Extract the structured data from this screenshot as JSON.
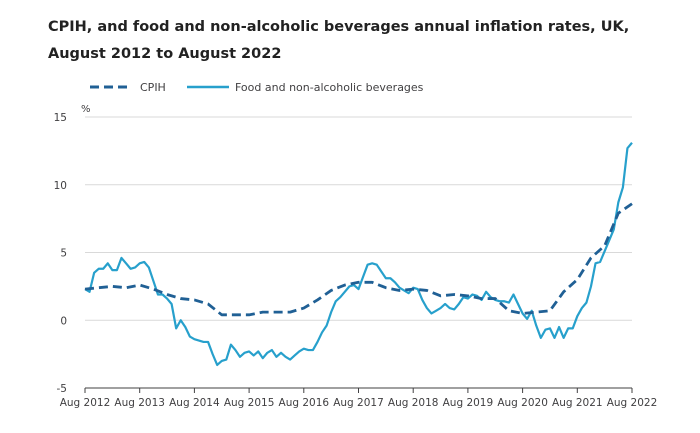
{
  "chart_data": {
    "type": "line",
    "title_line1": "CPIH, and food and non-alcoholic beverages annual inflation rates, UK,",
    "title_line2": "August 2012 to August 2022",
    "yunit": "%",
    "ylim": [
      -5,
      15
    ],
    "yticks": [
      -5,
      0,
      5,
      10,
      15
    ],
    "xlim": [
      "2012-08",
      "2022-08"
    ],
    "xticks": [
      "Aug 2012",
      "Aug 2013",
      "Aug 2014",
      "Aug 2015",
      "Aug 2016",
      "Aug 2017",
      "Aug 2018",
      "Aug 2019",
      "Aug 2020",
      "Aug 2021",
      "Aug 2022"
    ],
    "grid": "horizontal",
    "legend_position": "top-left",
    "series": [
      {
        "name": "CPIH",
        "style": "dashed",
        "color": "#206095",
        "values": [
          [
            "2012-08",
            2.3
          ],
          [
            "2012-11",
            2.4
          ],
          [
            "2013-02",
            2.5
          ],
          [
            "2013-05",
            2.4
          ],
          [
            "2013-08",
            2.6
          ],
          [
            "2013-11",
            2.3
          ],
          [
            "2014-02",
            1.9
          ],
          [
            "2014-05",
            1.6
          ],
          [
            "2014-08",
            1.5
          ],
          [
            "2014-11",
            1.2
          ],
          [
            "2015-02",
            0.4
          ],
          [
            "2015-05",
            0.4
          ],
          [
            "2015-08",
            0.4
          ],
          [
            "2015-11",
            0.6
          ],
          [
            "2016-02",
            0.6
          ],
          [
            "2016-05",
            0.6
          ],
          [
            "2016-08",
            0.9
          ],
          [
            "2016-11",
            1.5
          ],
          [
            "2017-02",
            2.2
          ],
          [
            "2017-05",
            2.6
          ],
          [
            "2017-08",
            2.8
          ],
          [
            "2017-11",
            2.8
          ],
          [
            "2018-02",
            2.4
          ],
          [
            "2018-05",
            2.2
          ],
          [
            "2018-08",
            2.3
          ],
          [
            "2018-11",
            2.2
          ],
          [
            "2019-02",
            1.8
          ],
          [
            "2019-05",
            1.9
          ],
          [
            "2019-08",
            1.8
          ],
          [
            "2019-11",
            1.6
          ],
          [
            "2020-02",
            1.6
          ],
          [
            "2020-05",
            0.7
          ],
          [
            "2020-08",
            0.5
          ],
          [
            "2020-11",
            0.6
          ],
          [
            "2021-02",
            0.7
          ],
          [
            "2021-05",
            2.1
          ],
          [
            "2021-08",
            3.0
          ],
          [
            "2021-11",
            4.6
          ],
          [
            "2022-02",
            5.5
          ],
          [
            "2022-05",
            7.9
          ],
          [
            "2022-08",
            8.6
          ]
        ]
      },
      {
        "name": "Food and non-alcoholic beverages",
        "style": "solid",
        "color": "#27a0cc",
        "values": [
          [
            "2012-08",
            2.3
          ],
          [
            "2012-09",
            2.1
          ],
          [
            "2012-10",
            3.5
          ],
          [
            "2012-11",
            3.8
          ],
          [
            "2012-12",
            3.8
          ],
          [
            "2013-01",
            4.2
          ],
          [
            "2013-02",
            3.7
          ],
          [
            "2013-03",
            3.7
          ],
          [
            "2013-04",
            4.6
          ],
          [
            "2013-05",
            4.2
          ],
          [
            "2013-06",
            3.8
          ],
          [
            "2013-07",
            3.9
          ],
          [
            "2013-08",
            4.2
          ],
          [
            "2013-09",
            4.3
          ],
          [
            "2013-10",
            3.9
          ],
          [
            "2013-11",
            2.9
          ],
          [
            "2013-12",
            1.9
          ],
          [
            "2014-01",
            1.9
          ],
          [
            "2014-02",
            1.6
          ],
          [
            "2014-03",
            1.2
          ],
          [
            "2014-04",
            -0.6
          ],
          [
            "2014-05",
            0.0
          ],
          [
            "2014-06",
            -0.5
          ],
          [
            "2014-07",
            -1.2
          ],
          [
            "2014-08",
            -1.4
          ],
          [
            "2014-09",
            -1.5
          ],
          [
            "2014-10",
            -1.6
          ],
          [
            "2014-11",
            -1.6
          ],
          [
            "2014-12",
            -2.5
          ],
          [
            "2015-01",
            -3.3
          ],
          [
            "2015-02",
            -3.0
          ],
          [
            "2015-03",
            -2.9
          ],
          [
            "2015-04",
            -1.8
          ],
          [
            "2015-05",
            -2.2
          ],
          [
            "2015-06",
            -2.7
          ],
          [
            "2015-07",
            -2.4
          ],
          [
            "2015-08",
            -2.3
          ],
          [
            "2015-09",
            -2.6
          ],
          [
            "2015-10",
            -2.3
          ],
          [
            "2015-11",
            -2.8
          ],
          [
            "2015-12",
            -2.4
          ],
          [
            "2016-01",
            -2.2
          ],
          [
            "2016-02",
            -2.7
          ],
          [
            "2016-03",
            -2.4
          ],
          [
            "2016-04",
            -2.7
          ],
          [
            "2016-05",
            -2.9
          ],
          [
            "2016-06",
            -2.6
          ],
          [
            "2016-07",
            -2.3
          ],
          [
            "2016-08",
            -2.1
          ],
          [
            "2016-09",
            -2.2
          ],
          [
            "2016-10",
            -2.2
          ],
          [
            "2016-11",
            -1.6
          ],
          [
            "2016-12",
            -0.9
          ],
          [
            "2017-01",
            -0.4
          ],
          [
            "2017-02",
            0.6
          ],
          [
            "2017-03",
            1.4
          ],
          [
            "2017-04",
            1.7
          ],
          [
            "2017-05",
            2.1
          ],
          [
            "2017-06",
            2.5
          ],
          [
            "2017-07",
            2.6
          ],
          [
            "2017-08",
            2.3
          ],
          [
            "2017-09",
            3.2
          ],
          [
            "2017-10",
            4.1
          ],
          [
            "2017-11",
            4.2
          ],
          [
            "2017-12",
            4.1
          ],
          [
            "2018-01",
            3.6
          ],
          [
            "2018-02",
            3.1
          ],
          [
            "2018-03",
            3.1
          ],
          [
            "2018-04",
            2.8
          ],
          [
            "2018-05",
            2.4
          ],
          [
            "2018-06",
            2.2
          ],
          [
            "2018-07",
            2.0
          ],
          [
            "2018-08",
            2.4
          ],
          [
            "2018-09",
            2.3
          ],
          [
            "2018-10",
            1.5
          ],
          [
            "2018-11",
            0.9
          ],
          [
            "2018-12",
            0.5
          ],
          [
            "2019-01",
            0.7
          ],
          [
            "2019-02",
            0.9
          ],
          [
            "2019-03",
            1.2
          ],
          [
            "2019-04",
            0.9
          ],
          [
            "2019-05",
            0.8
          ],
          [
            "2019-06",
            1.2
          ],
          [
            "2019-07",
            1.7
          ],
          [
            "2019-08",
            1.6
          ],
          [
            "2019-09",
            1.9
          ],
          [
            "2019-10",
            1.8
          ],
          [
            "2019-11",
            1.5
          ],
          [
            "2019-12",
            2.1
          ],
          [
            "2020-01",
            1.7
          ],
          [
            "2020-02",
            1.5
          ],
          [
            "2020-03",
            1.4
          ],
          [
            "2020-04",
            1.4
          ],
          [
            "2020-05",
            1.3
          ],
          [
            "2020-06",
            1.9
          ],
          [
            "2020-07",
            1.2
          ],
          [
            "2020-08",
            0.5
          ],
          [
            "2020-09",
            0.1
          ],
          [
            "2020-10",
            0.7
          ],
          [
            "2020-11",
            -0.4
          ],
          [
            "2020-12",
            -1.3
          ],
          [
            "2021-01",
            -0.7
          ],
          [
            "2021-02",
            -0.6
          ],
          [
            "2021-03",
            -1.3
          ],
          [
            "2021-04",
            -0.5
          ],
          [
            "2021-05",
            -1.3
          ],
          [
            "2021-06",
            -0.6
          ],
          [
            "2021-07",
            -0.6
          ],
          [
            "2021-08",
            0.3
          ],
          [
            "2021-09",
            0.9
          ],
          [
            "2021-10",
            1.3
          ],
          [
            "2021-11",
            2.5
          ],
          [
            "2021-12",
            4.2
          ],
          [
            "2022-01",
            4.3
          ],
          [
            "2022-02",
            5.1
          ],
          [
            "2022-03",
            5.9
          ],
          [
            "2022-04",
            6.7
          ],
          [
            "2022-05",
            8.7
          ],
          [
            "2022-06",
            9.8
          ],
          [
            "2022-07",
            12.7
          ],
          [
            "2022-08",
            13.1
          ]
        ]
      }
    ]
  }
}
